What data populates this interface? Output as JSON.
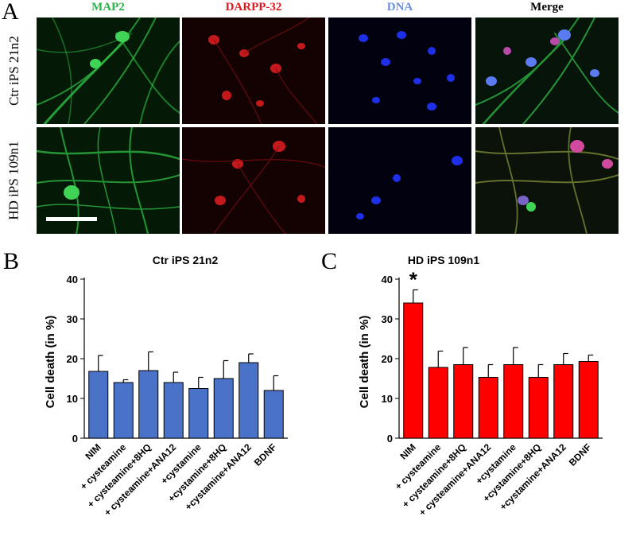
{
  "panel_labels": {
    "a": "A",
    "b": "B",
    "c": "C"
  },
  "channels": [
    {
      "label": "MAP2",
      "color": "#2bb34a"
    },
    {
      "label": "DARPP-32",
      "color": "#e0191f"
    },
    {
      "label": "DNA",
      "color": "#6e8fe0"
    },
    {
      "label": "Merge",
      "color": "#000000"
    }
  ],
  "rows": [
    {
      "label": "Ctr iPS 21n2"
    },
    {
      "label": "HD iPS 109n1"
    }
  ],
  "chart_data": [
    {
      "type": "bar",
      "title": "Ctr iPS 21n2",
      "ylabel": "Cell death (in %)",
      "xlabel": "",
      "ylim": [
        0,
        40
      ],
      "yticks": [
        0,
        10,
        20,
        30,
        40
      ],
      "categories": [
        "NIM",
        "+ cysteamine",
        "+ cysteamine+8HQ",
        "+ cysteamine+ANA12",
        "+cystamine",
        "+cystamine+8HQ",
        "+cystamine+ANA12",
        "BDNF"
      ],
      "values": [
        16.8,
        14.0,
        17.0,
        14.0,
        12.5,
        15.0,
        19.0,
        12.0
      ],
      "errors": [
        4.0,
        0.7,
        4.7,
        2.6,
        2.8,
        4.5,
        2.2,
        3.7
      ],
      "bar_color": "#4a73c8",
      "annotations": []
    },
    {
      "type": "bar",
      "title": "HD iPS 109n1",
      "ylabel": "Cell death (in %)",
      "xlabel": "",
      "ylim": [
        0,
        40
      ],
      "yticks": [
        0,
        10,
        20,
        30,
        40
      ],
      "categories": [
        "NIM",
        "+ cysteamine",
        "+ cysteamine+8HQ",
        "+ cysteamine+ANA12",
        "+cystamine",
        "+cystamine+8HQ",
        "+cystamine+ANA12",
        "BDNF"
      ],
      "values": [
        34.0,
        17.8,
        18.5,
        15.3,
        18.5,
        15.3,
        18.5,
        19.3
      ],
      "errors": [
        3.3,
        4.1,
        4.3,
        3.2,
        4.3,
        3.2,
        2.8,
        1.6
      ],
      "bar_color": "#ff0000",
      "annotations": [
        {
          "category": "NIM",
          "text": "*"
        }
      ]
    }
  ]
}
